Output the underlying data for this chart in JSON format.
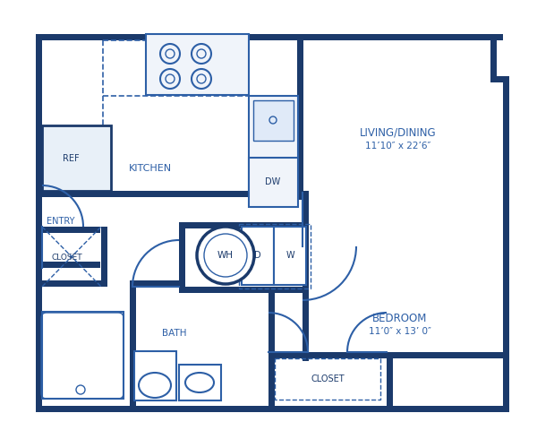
{
  "bg_color": "#ffffff",
  "wall_color": "#1b3a6b",
  "blue": "#2d5fa6",
  "figsize": [
    6.0,
    4.9
  ],
  "dpi": 100,
  "labels": {
    "living_dining": "LIVING/DINING",
    "living_dining_size": "11’10″ x 22’6″",
    "kitchen": "KITCHEN",
    "bedroom": "BEDROOM",
    "bedroom_size": "11’0″ x 13’ 0″",
    "bath": "BATH",
    "entry": "ENTRY",
    "closet": "CLOSET",
    "ref": "REF",
    "dw": "DW",
    "wh": "WH",
    "d": "D",
    "w": "W"
  }
}
